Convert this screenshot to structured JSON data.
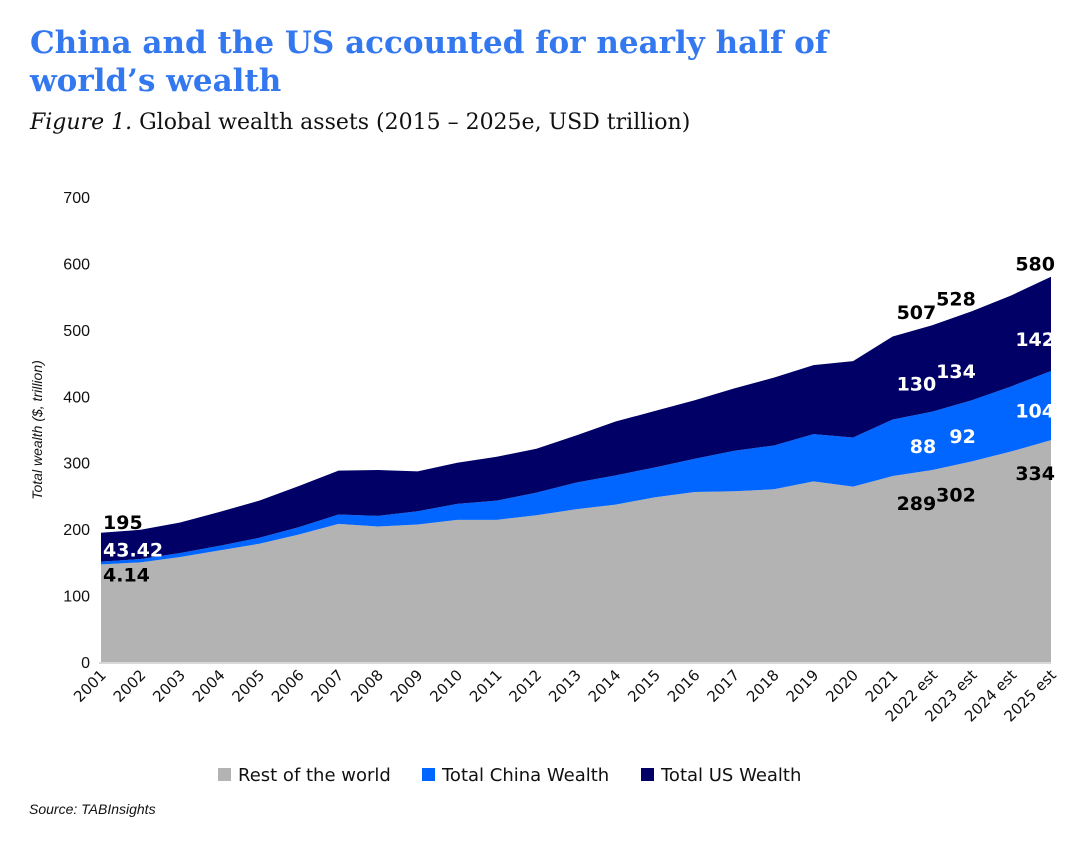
{
  "title": "China and the US accounted for nearly half of world’s wealth",
  "subtitle_figure": "Figure 1.",
  "subtitle_text": "Global wealth assets (2015 – 2025e, USD trillion)",
  "source": "Source: TABInsights",
  "chart_data": {
    "type": "area",
    "stacked": true,
    "ylabel": "Total wealth ($, trillion)",
    "xlabel": "",
    "ylim": [
      0,
      700
    ],
    "yticks": [
      0,
      100,
      200,
      300,
      400,
      500,
      600,
      700
    ],
    "grid": false,
    "legend_position": "bottom",
    "categories": [
      "2001",
      "2002",
      "2003",
      "2004",
      "2005",
      "2006",
      "2007",
      "2008",
      "2009",
      "2010",
      "2011",
      "2012",
      "2013",
      "2014",
      "2015",
      "2016",
      "2017",
      "2018",
      "2019",
      "2020",
      "2021",
      "2022 est",
      "2023 est",
      "2024 est",
      "2025 est"
    ],
    "series": [
      {
        "name": "Rest of the world",
        "color": "#b3b3b3",
        "values": [
          147,
          150,
          158,
          168,
          178,
          192,
          208,
          204,
          207,
          214,
          214,
          221,
          230,
          237,
          248,
          256,
          257,
          260,
          272,
          264,
          280,
          289,
          302,
          317,
          334
        ]
      },
      {
        "name": "Total China Wealth",
        "color": "#0066ff",
        "values": [
          4.14,
          5,
          6,
          7,
          9,
          11,
          14,
          16,
          20,
          24,
          29,
          34,
          40,
          44,
          45,
          50,
          61,
          66,
          71,
          74,
          85,
          88,
          92,
          98,
          104
        ]
      },
      {
        "name": "Total US Wealth",
        "color": "#000066",
        "values": [
          43.42,
          44,
          46,
          51,
          56,
          62,
          66,
          69,
          60,
          62,
          66,
          66,
          71,
          81,
          85,
          88,
          94,
          102,
          104,
          115,
          125,
          130,
          134,
          137,
          142
        ]
      }
    ],
    "data_labels": [
      {
        "category": "2001",
        "total": "195",
        "us": "43.42",
        "china": "4.14"
      },
      {
        "category": "2022 est",
        "total": "507",
        "us": "130",
        "china": "88",
        "rest": "289"
      },
      {
        "category": "2023 est",
        "total": "528",
        "us": "134",
        "china": "92",
        "rest": "302"
      },
      {
        "category": "2025 est",
        "total": "580",
        "us": "142",
        "china": "104",
        "rest": "334"
      }
    ]
  }
}
